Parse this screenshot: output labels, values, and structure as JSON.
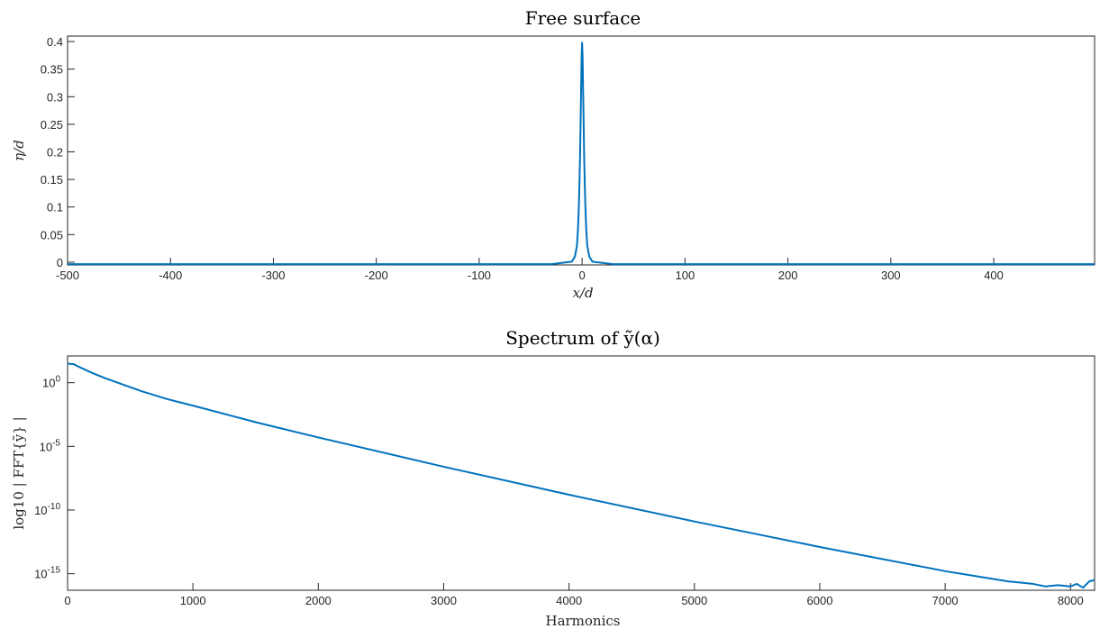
{
  "colors": {
    "series": "#0072BD",
    "axis": "#262626"
  },
  "chart_data": [
    {
      "type": "line",
      "title": "Free surface",
      "xlabel": "x/d",
      "ylabel": "η/d",
      "xlim": [
        -500,
        498
      ],
      "ylim": [
        -0.005,
        0.41
      ],
      "grid": false,
      "x_ticks": [
        -500,
        -400,
        -300,
        -200,
        -100,
        0,
        100,
        200,
        300,
        400
      ],
      "x_tick_labels": [
        "-500",
        "-400",
        "-300",
        "-200",
        "-100",
        "0",
        "100",
        "200",
        "300",
        "400"
      ],
      "y_ticks": [
        0,
        0.05,
        0.1,
        0.15,
        0.2,
        0.25,
        0.3,
        0.35,
        0.4
      ],
      "y_tick_labels": [
        "0",
        "0.05",
        "0.1",
        "0.15",
        "0.2",
        "0.25",
        "0.3",
        "0.35",
        "0.4"
      ],
      "series": [
        {
          "x": [
            -500,
            -30,
            -10,
            -7,
            -5,
            -4,
            -3,
            -2,
            -1.5,
            -1,
            -0.5,
            0,
            0.5,
            1,
            1.5,
            2,
            3,
            4,
            5,
            7,
            10,
            30,
            498
          ],
          "y": [
            -0.0035,
            -0.0035,
            0.001,
            0.01,
            0.03,
            0.06,
            0.11,
            0.19,
            0.25,
            0.31,
            0.37,
            0.398,
            0.37,
            0.31,
            0.25,
            0.19,
            0.11,
            0.06,
            0.03,
            0.01,
            0.001,
            -0.0035,
            -0.0035
          ]
        }
      ]
    },
    {
      "type": "line",
      "title": "Spectrum of ỹ(α)",
      "xlabel": "Harmonics",
      "ylabel": "log10 | FFT{ỹ} |",
      "xlim": [
        0,
        8192
      ],
      "ylim_log10": [
        -16.3,
        2.1
      ],
      "yscale": "log",
      "grid": false,
      "x_ticks": [
        0,
        1000,
        2000,
        3000,
        4000,
        5000,
        6000,
        7000,
        8000
      ],
      "x_tick_labels": [
        "0",
        "1000",
        "2000",
        "3000",
        "4000",
        "5000",
        "6000",
        "7000",
        "8000"
      ],
      "y_ticks_log10": [
        0,
        -5,
        -10,
        -15
      ],
      "y_tick_bases": [
        "10",
        "10",
        "10",
        "10"
      ],
      "y_tick_exponents": [
        "0",
        "-5",
        "-10",
        "-15"
      ],
      "series": [
        {
          "x": [
            0,
            50,
            100,
            200,
            300,
            400,
            600,
            800,
            1000,
            1500,
            2000,
            3000,
            4000,
            5000,
            6000,
            7000,
            7500,
            7700,
            7800,
            7900,
            8000,
            8050,
            8100,
            8150,
            8192
          ],
          "log10_y": [
            1.5,
            1.45,
            1.2,
            0.75,
            0.35,
            0.0,
            -0.7,
            -1.3,
            -1.8,
            -3.1,
            -4.3,
            -6.6,
            -8.8,
            -10.9,
            -12.9,
            -14.8,
            -15.6,
            -15.8,
            -16.0,
            -15.9,
            -16.0,
            -15.8,
            -16.1,
            -15.6,
            -15.5
          ]
        }
      ]
    }
  ]
}
